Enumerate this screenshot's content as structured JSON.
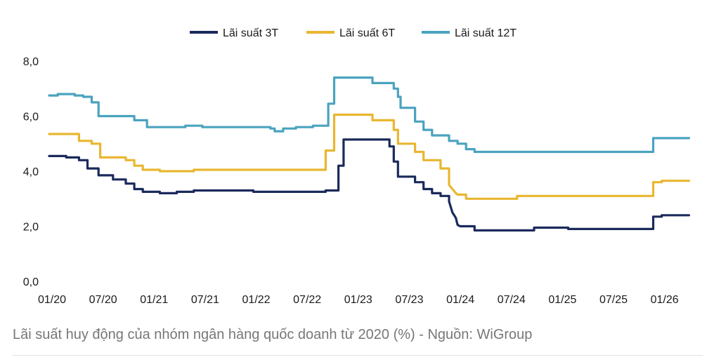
{
  "caption": "Lãi suất huy động của nhóm ngân hàng quốc doanh từ 2020 (%) - Nguồn: WiGroup",
  "chart_data": {
    "type": "line",
    "title": "",
    "xlabel": "",
    "ylabel": "",
    "ylim": [
      0,
      8
    ],
    "xlim": [
      0,
      75.5
    ],
    "y_ticks": [
      0,
      2,
      4,
      6,
      8
    ],
    "y_tick_labels": [
      "0,0",
      "2,0",
      "4,0",
      "6,0",
      "8,0"
    ],
    "x_ticks": [
      0,
      6,
      12,
      18,
      24,
      30,
      36,
      42,
      48,
      54,
      60,
      66,
      72
    ],
    "x_tick_labels": [
      "01/20",
      "07/20",
      "01/21",
      "07/21",
      "01/22",
      "07/22",
      "01/23",
      "07/23",
      "01/24",
      "07/24",
      "01/25",
      "07/25",
      "01/26"
    ],
    "x_unit": "months since 01/2020",
    "grid": false,
    "legend_position": "top-center",
    "series": [
      {
        "name": "Lãi suất 3T",
        "color": "#1b2a5c",
        "points": [
          [
            0,
            4.55
          ],
          [
            2,
            4.55
          ],
          [
            2,
            4.5
          ],
          [
            3.5,
            4.5
          ],
          [
            3.5,
            4.4
          ],
          [
            4.5,
            4.4
          ],
          [
            4.5,
            4.1
          ],
          [
            5.8,
            4.1
          ],
          [
            5.8,
            3.85
          ],
          [
            7.5,
            3.85
          ],
          [
            7.5,
            3.7
          ],
          [
            9,
            3.7
          ],
          [
            9,
            3.55
          ],
          [
            10,
            3.55
          ],
          [
            10,
            3.35
          ],
          [
            11,
            3.35
          ],
          [
            11,
            3.25
          ],
          [
            13,
            3.25
          ],
          [
            13,
            3.2
          ],
          [
            15,
            3.2
          ],
          [
            15,
            3.25
          ],
          [
            17,
            3.25
          ],
          [
            17,
            3.3
          ],
          [
            24,
            3.3
          ],
          [
            24,
            3.25
          ],
          [
            32.5,
            3.25
          ],
          [
            32.5,
            3.3
          ],
          [
            34,
            3.3
          ],
          [
            34,
            4.2
          ],
          [
            34.6,
            4.2
          ],
          [
            34.6,
            5.15
          ],
          [
            40,
            5.15
          ],
          [
            40,
            4.9
          ],
          [
            40.5,
            4.9
          ],
          [
            40.5,
            4.35
          ],
          [
            41,
            4.35
          ],
          [
            41,
            3.8
          ],
          [
            43,
            3.8
          ],
          [
            43,
            3.6
          ],
          [
            44,
            3.6
          ],
          [
            44,
            3.35
          ],
          [
            45,
            3.35
          ],
          [
            45,
            3.2
          ],
          [
            46,
            3.2
          ],
          [
            46,
            3.1
          ],
          [
            47,
            3.1
          ],
          [
            47,
            2.9
          ],
          [
            47.4,
            2.5
          ],
          [
            47.8,
            2.3
          ],
          [
            48,
            2.05
          ],
          [
            48.3,
            2.0
          ],
          [
            50,
            2.0
          ],
          [
            50,
            1.85
          ],
          [
            57,
            1.85
          ],
          [
            57,
            1.95
          ],
          [
            61,
            1.95
          ],
          [
            61,
            1.9
          ],
          [
            71,
            1.9
          ],
          [
            71,
            2.35
          ],
          [
            72,
            2.35
          ],
          [
            72,
            2.4
          ],
          [
            74,
            2.4
          ],
          [
            74,
            2.4
          ],
          [
            75.2,
            2.4
          ]
        ]
      },
      {
        "name": "Lãi suất 6T",
        "color": "#e8b730",
        "points": [
          [
            0,
            5.35
          ],
          [
            3.5,
            5.35
          ],
          [
            3.5,
            5.1
          ],
          [
            5,
            5.1
          ],
          [
            5,
            5.0
          ],
          [
            6,
            5.0
          ],
          [
            6,
            4.5
          ],
          [
            9,
            4.5
          ],
          [
            9,
            4.4
          ],
          [
            10,
            4.4
          ],
          [
            10,
            4.2
          ],
          [
            11,
            4.2
          ],
          [
            11,
            4.05
          ],
          [
            13,
            4.05
          ],
          [
            13,
            4.0
          ],
          [
            17,
            4.0
          ],
          [
            17,
            4.05
          ],
          [
            32.5,
            4.05
          ],
          [
            32.5,
            4.75
          ],
          [
            33.5,
            4.75
          ],
          [
            33.5,
            6.05
          ],
          [
            38,
            6.05
          ],
          [
            38,
            5.85
          ],
          [
            40.5,
            5.85
          ],
          [
            40.5,
            5.5
          ],
          [
            41,
            5.5
          ],
          [
            41,
            5.0
          ],
          [
            43,
            5.0
          ],
          [
            43,
            4.7
          ],
          [
            44,
            4.7
          ],
          [
            44,
            4.4
          ],
          [
            46,
            4.4
          ],
          [
            46,
            4.1
          ],
          [
            47,
            4.1
          ],
          [
            47,
            3.5
          ],
          [
            47.8,
            3.2
          ],
          [
            48,
            3.15
          ],
          [
            49,
            3.15
          ],
          [
            49,
            3.0
          ],
          [
            55,
            3.0
          ],
          [
            55,
            3.1
          ],
          [
            71,
            3.1
          ],
          [
            71,
            3.6
          ],
          [
            72,
            3.6
          ],
          [
            72,
            3.65
          ],
          [
            75.2,
            3.65
          ]
        ]
      },
      {
        "name": "Lãi suất 12T",
        "color": "#4aa3bf",
        "points": [
          [
            0,
            6.75
          ],
          [
            1,
            6.75
          ],
          [
            1,
            6.8
          ],
          [
            3,
            6.8
          ],
          [
            3,
            6.75
          ],
          [
            4,
            6.75
          ],
          [
            4,
            6.7
          ],
          [
            5,
            6.7
          ],
          [
            5,
            6.5
          ],
          [
            5.8,
            6.5
          ],
          [
            5.8,
            6.0
          ],
          [
            10,
            6.0
          ],
          [
            10,
            5.85
          ],
          [
            11.5,
            5.85
          ],
          [
            11.5,
            5.6
          ],
          [
            16,
            5.6
          ],
          [
            16,
            5.65
          ],
          [
            18,
            5.65
          ],
          [
            18,
            5.6
          ],
          [
            26,
            5.6
          ],
          [
            26,
            5.55
          ],
          [
            26.5,
            5.55
          ],
          [
            26.5,
            5.45
          ],
          [
            27.5,
            5.45
          ],
          [
            27.5,
            5.55
          ],
          [
            29,
            5.55
          ],
          [
            29,
            5.6
          ],
          [
            31,
            5.6
          ],
          [
            31,
            5.65
          ],
          [
            32.8,
            5.65
          ],
          [
            32.8,
            6.45
          ],
          [
            33.5,
            6.45
          ],
          [
            33.5,
            7.4
          ],
          [
            38,
            7.4
          ],
          [
            38,
            7.2
          ],
          [
            40.5,
            7.2
          ],
          [
            40.5,
            7.0
          ],
          [
            41,
            7.0
          ],
          [
            41,
            6.7
          ],
          [
            41.3,
            6.7
          ],
          [
            41.3,
            6.3
          ],
          [
            43,
            6.3
          ],
          [
            43,
            5.8
          ],
          [
            44,
            5.8
          ],
          [
            44,
            5.5
          ],
          [
            45,
            5.5
          ],
          [
            45,
            5.3
          ],
          [
            47,
            5.3
          ],
          [
            47,
            5.1
          ],
          [
            48,
            5.1
          ],
          [
            48,
            5.0
          ],
          [
            49,
            5.0
          ],
          [
            49,
            4.8
          ],
          [
            50,
            4.8
          ],
          [
            50,
            4.7
          ],
          [
            71,
            4.7
          ],
          [
            71,
            5.2
          ],
          [
            75.2,
            5.2
          ]
        ]
      }
    ]
  }
}
